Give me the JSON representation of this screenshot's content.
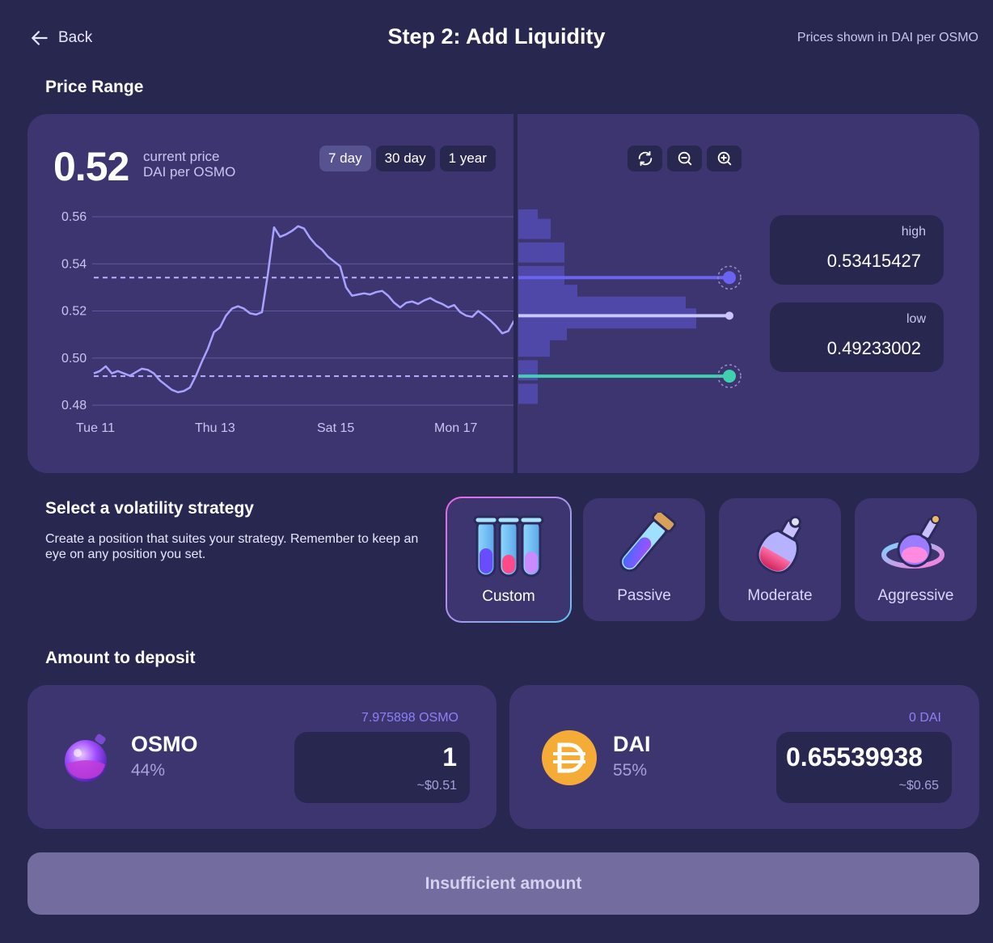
{
  "header": {
    "back_label": "Back",
    "title": "Step 2: Add Liquidity",
    "price_note": "Prices shown in DAI per OSMO"
  },
  "price_range": {
    "section_title": "Price Range",
    "current_price": "0.52",
    "current_label_1": "current price",
    "current_label_2": "DAI per OSMO",
    "range_buttons": [
      {
        "label": "7 day",
        "active": true
      },
      {
        "label": "30 day",
        "active": false
      },
      {
        "label": "1 year",
        "active": false
      }
    ],
    "controls": [
      "refresh-icon",
      "zoom-out-icon",
      "zoom-in-icon"
    ],
    "high_label": "high",
    "high_value": "0.53415427",
    "low_label": "low",
    "low_value": "0.49233002"
  },
  "chart_data": {
    "type": "line",
    "ylim": [
      0.48,
      0.56
    ],
    "yticks": [
      "0.56",
      "0.54",
      "0.52",
      "0.50",
      "0.48"
    ],
    "xticks": [
      "Tue 11",
      "Thu 13",
      "Sat 15",
      "Mon 17"
    ],
    "x": [
      0,
      1,
      2,
      3,
      4,
      5,
      6,
      7,
      8,
      9,
      10,
      11,
      12,
      13,
      14,
      15,
      16,
      17,
      18,
      19,
      20,
      21,
      22,
      23,
      24,
      25,
      26,
      27,
      28,
      29,
      30,
      31,
      32,
      33,
      34,
      35,
      36,
      37,
      38,
      39,
      40,
      41,
      42,
      43,
      44,
      45,
      46,
      47,
      48,
      49,
      50,
      51,
      52,
      53,
      54,
      55,
      56,
      57,
      58,
      59,
      60,
      61,
      62,
      63,
      64,
      65,
      66,
      67,
      68,
      69,
      70
    ],
    "series": [
      {
        "values": [
          0.4935,
          0.4945,
          0.4965,
          0.4935,
          0.4945,
          0.4935,
          0.4925,
          0.494,
          0.4955,
          0.495,
          0.4935,
          0.4905,
          0.4885,
          0.4865,
          0.4855,
          0.486,
          0.4875,
          0.4925,
          0.4985,
          0.504,
          0.511,
          0.513,
          0.518,
          0.521,
          0.522,
          0.521,
          0.519,
          0.5185,
          0.5195,
          0.536,
          0.5555,
          0.5515,
          0.5525,
          0.554,
          0.556,
          0.555,
          0.551,
          0.548,
          0.546,
          0.543,
          0.541,
          0.539,
          0.53,
          0.5265,
          0.527,
          0.5275,
          0.527,
          0.528,
          0.5285,
          0.5265,
          0.5235,
          0.5215,
          0.5235,
          0.524,
          0.523,
          0.5245,
          0.5255,
          0.524,
          0.523,
          0.5215,
          0.5225,
          0.5195,
          0.518,
          0.5175,
          0.52,
          0.518,
          0.516,
          0.5135,
          0.5105,
          0.5115,
          0.516
        ]
      }
    ],
    "high_price": 0.53415427,
    "low_price": 0.49233002,
    "current_price": 0.518,
    "liquidity_histogram": [
      {
        "price": 0.559,
        "depth": 24
      },
      {
        "price": 0.555,
        "depth": 40
      },
      {
        "price": 0.545,
        "depth": 57
      },
      {
        "price": 0.535,
        "depth": 57
      },
      {
        "price": 0.527,
        "depth": 73
      },
      {
        "price": 0.522,
        "depth": 207
      },
      {
        "price": 0.517,
        "depth": 220
      },
      {
        "price": 0.512,
        "depth": 60
      },
      {
        "price": 0.505,
        "depth": 39
      },
      {
        "price": 0.495,
        "depth": 24
      },
      {
        "price": 0.485,
        "depth": 24
      }
    ]
  },
  "strategy": {
    "section_title": "Select a volatility strategy",
    "description": "Create a position that suites your strategy. Remember to keep an eye on any position you set.",
    "options": [
      {
        "label": "Custom",
        "icon": "test-tubes-icon",
        "selected": true
      },
      {
        "label": "Passive",
        "icon": "vial-icon",
        "selected": false
      },
      {
        "label": "Moderate",
        "icon": "potion-bottle-icon",
        "selected": false
      },
      {
        "label": "Aggressive",
        "icon": "swirl-potion-icon",
        "selected": false
      }
    ]
  },
  "deposit": {
    "section_title": "Amount to deposit",
    "osmo": {
      "name": "OSMO",
      "percent": "44%",
      "balance": "7.975898 OSMO",
      "amount": "1",
      "usd": "~$0.51"
    },
    "dai": {
      "name": "DAI",
      "percent": "55%",
      "balance": "0 DAI",
      "amount": "0.65539938",
      "usd": "~$0.65"
    }
  },
  "submit_label": "Insufficient amount",
  "colors": {
    "background": "#282750",
    "card": "#3c3570",
    "line": "#a8a2ff",
    "high_handle": "#6a63f2",
    "low_handle": "#3fd0b0",
    "dai_gold": "#f5ac37"
  }
}
